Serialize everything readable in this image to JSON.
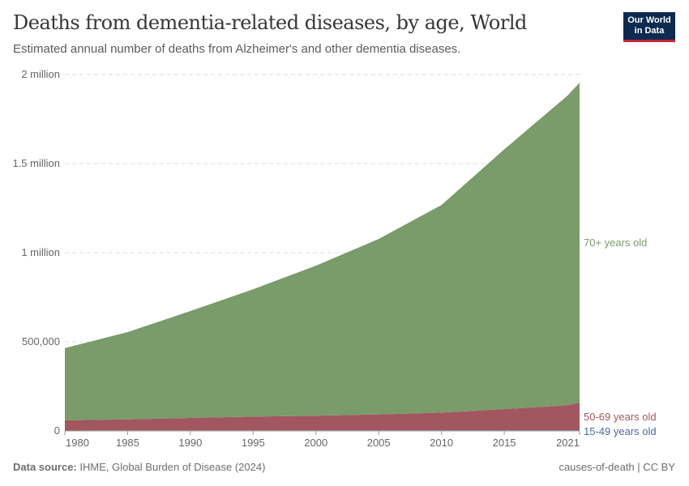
{
  "header": {
    "title": "Deaths from dementia-related diseases, by age, World",
    "subtitle": "Estimated annual number of deaths from Alzheimer's and other dementia diseases.",
    "logo": "Our World in Data"
  },
  "footer": {
    "source_label": "Data source:",
    "source": "IHME, Global Burden of Disease (2024)",
    "right": "causes-of-death | CC BY"
  },
  "chart_data": {
    "type": "area",
    "stacked": true,
    "title": "Deaths from dementia-related diseases, by age, World",
    "x": [
      1980,
      1985,
      1990,
      1995,
      2000,
      2005,
      2010,
      2015,
      2020,
      2021
    ],
    "x_ticks": [
      "1980",
      "1985",
      "1990",
      "1995",
      "2000",
      "2005",
      "2010",
      "2015",
      "2021"
    ],
    "y_ticks": [
      {
        "v": 0,
        "label": "0"
      },
      {
        "v": 500000,
        "label": "500,000"
      },
      {
        "v": 1000000,
        "label": "1 million"
      },
      {
        "v": 1500000,
        "label": "1.5 million"
      },
      {
        "v": 2000000,
        "label": "2 million"
      }
    ],
    "ylim": [
      0,
      2000000
    ],
    "xlim": [
      1980,
      2021
    ],
    "grid": "horizontal dashed",
    "series": [
      {
        "name": "15-49 years old",
        "color": "#4c6a9c",
        "values": [
          2500,
          2700,
          2900,
          3100,
          3300,
          3500,
          3700,
          3900,
          4100,
          4200
        ]
      },
      {
        "name": "50-69 years old",
        "color": "#a2565f",
        "values": [
          57000,
          62000,
          70000,
          77000,
          82000,
          89000,
          99000,
          118000,
          140000,
          155000
        ]
      },
      {
        "name": "70+ years old",
        "color": "#7a9b6a",
        "values": [
          405000,
          490000,
          600000,
          715000,
          842000,
          985000,
          1165000,
          1458000,
          1735000,
          1795000
        ]
      }
    ]
  }
}
